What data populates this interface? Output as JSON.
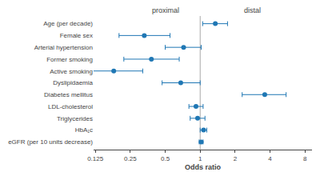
{
  "chart_data": {
    "type": "forest",
    "categories": [
      "Age (per decade)",
      "Female sex",
      "Arterial hypertension",
      "Former smoking",
      "Active smoking",
      "Dyslipidaemia",
      "Diabetes mellitus",
      "LDL-cholesterol",
      "Triglycerides",
      "HbA₁c",
      "eGFR (per 10 units decrease)"
    ],
    "values": [
      1.35,
      0.33,
      0.72,
      0.38,
      0.18,
      0.68,
      3.6,
      0.92,
      0.95,
      1.07,
      1.02
    ],
    "ci_low": [
      1.05,
      0.2,
      0.5,
      0.22,
      0.1,
      0.47,
      2.3,
      0.8,
      0.82,
      1.0,
      0.98
    ],
    "ci_high": [
      1.72,
      0.55,
      1.02,
      0.66,
      0.32,
      1.0,
      5.5,
      1.06,
      1.1,
      1.14,
      1.06
    ],
    "reference_line": 1,
    "xlabel": "Odds ratio",
    "log": "x",
    "xlim": [
      0.120742,
      9.189587
    ],
    "xticks": [
      0.125,
      0.25,
      0.5,
      1,
      2,
      4,
      8
    ],
    "annotations": [
      {
        "text": "proximal",
        "x": 0.5
      },
      {
        "text": "distal",
        "x": 2.8
      }
    ],
    "grid": false
  }
}
